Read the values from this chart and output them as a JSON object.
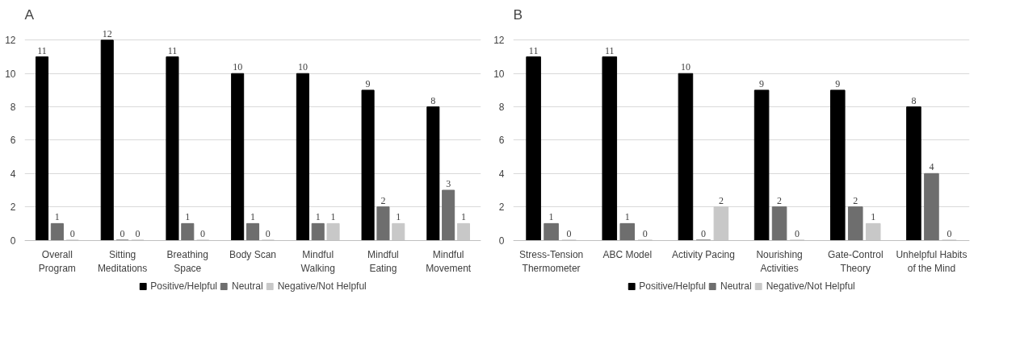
{
  "chart_data": [
    {
      "type": "bar",
      "title": "A",
      "categories": [
        "Overall Program",
        "Sitting Meditations",
        "Breathing Space",
        "Body Scan",
        "Mindful Walking",
        "Mindful Eating",
        "Mindful Movement"
      ],
      "series": [
        {
          "name": "Positive/Helpful",
          "color": "#000000",
          "values": [
            11,
            12,
            11,
            10,
            10,
            9,
            8
          ]
        },
        {
          "name": "Neutral",
          "color": "#6e6e6e",
          "values": [
            1,
            0,
            1,
            1,
            1,
            2,
            3
          ]
        },
        {
          "name": "Negative/Not Helpful",
          "color": "#c8c8c8",
          "values": [
            0,
            0,
            0,
            0,
            1,
            1,
            1
          ]
        }
      ],
      "ylim": [
        0,
        12
      ],
      "yticks": [
        0,
        2,
        4,
        6,
        8,
        10,
        12
      ],
      "grid": "y",
      "legend": "bottom",
      "data_labels": true
    },
    {
      "type": "bar",
      "title": "B",
      "categories": [
        "Stress-Tension Thermometer",
        "ABC Model",
        "Activity Pacing",
        "Nourishing Activities",
        "Gate-Control Theory",
        "Unhelpful Habits of the Mind"
      ],
      "series": [
        {
          "name": "Positive/Helpful",
          "color": "#000000",
          "values": [
            11,
            11,
            10,
            9,
            9,
            8
          ]
        },
        {
          "name": "Neutral",
          "color": "#6e6e6e",
          "values": [
            1,
            1,
            0,
            2,
            2,
            4
          ]
        },
        {
          "name": "Negative/Not Helpful",
          "color": "#c8c8c8",
          "values": [
            0,
            0,
            2,
            0,
            1,
            0
          ]
        }
      ],
      "ylim": [
        0,
        12
      ],
      "yticks": [
        0,
        2,
        4,
        6,
        8,
        10,
        12
      ],
      "grid": "y",
      "legend": "bottom",
      "data_labels": true
    }
  ]
}
